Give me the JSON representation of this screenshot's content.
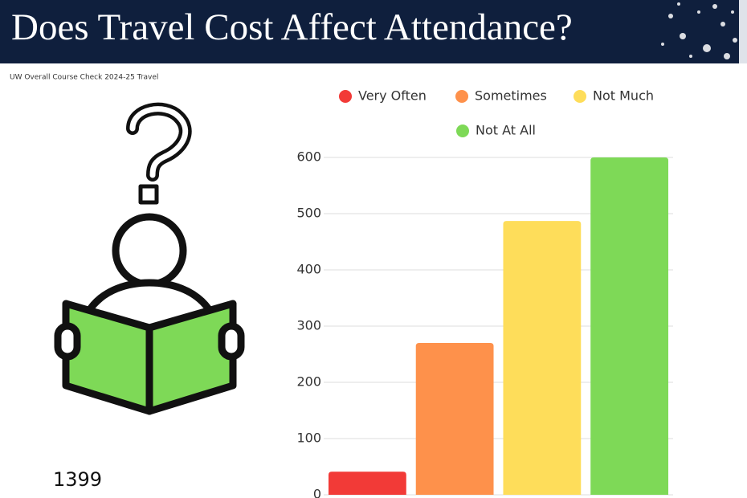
{
  "chart_data": {
    "type": "bar",
    "title": "Does Travel Cost Affect Attendance?",
    "subtitle": "UW Overall Course Check 2024-25 Travel",
    "annotation": "1399",
    "categories": [
      "Very Often",
      "Sometimes",
      "Not Much",
      "Not At All"
    ],
    "values": [
      41,
      270,
      487,
      600
    ],
    "colors": [
      "#f23a37",
      "#fe914b",
      "#fedd5a",
      "#7ed957"
    ],
    "ylim": [
      0,
      600
    ],
    "yticks": [
      0,
      100,
      200,
      300,
      400,
      500,
      600
    ],
    "grid": true
  }
}
